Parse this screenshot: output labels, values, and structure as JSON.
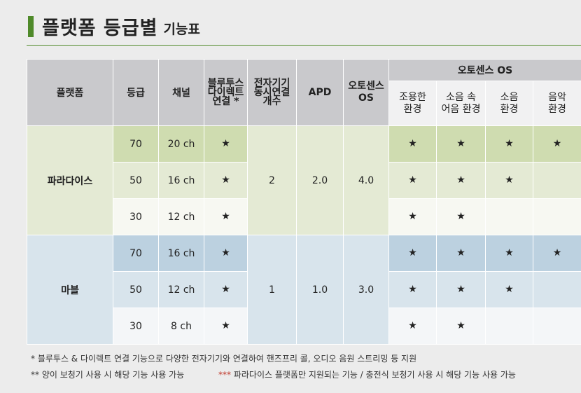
{
  "title": {
    "main": "플랫폼 등급별",
    "sub": "기능표"
  },
  "header": {
    "platform": "플랫폼",
    "grade": "등급",
    "channel": "채널",
    "bluetooth_lines": [
      "블루투스",
      "다이렉트",
      "연결 *"
    ],
    "devices_lines": [
      "전자기기",
      "동시연결",
      "개수"
    ],
    "apd": "APD",
    "autosense_lines": [
      "오토센스",
      "OS"
    ],
    "autosense_group": "오토센스 OS",
    "env": [
      [
        "조용한",
        "환경"
      ],
      [
        "소음 속",
        "어음 환경"
      ],
      [
        "소음",
        "환경"
      ],
      [
        "음악",
        "환경"
      ]
    ]
  },
  "groups": [
    {
      "name": "파라다이스",
      "devices": "2",
      "apd": "2.0",
      "os": "4.0",
      "rows": [
        {
          "grade": "70",
          "channel": "20 ch",
          "bt": "★",
          "env": [
            "★",
            "★",
            "★",
            "★"
          ]
        },
        {
          "grade": "50",
          "channel": "16 ch",
          "bt": "★",
          "env": [
            "★",
            "★",
            "★",
            ""
          ]
        },
        {
          "grade": "30",
          "channel": "12 ch",
          "bt": "★",
          "env": [
            "★",
            "★",
            "",
            ""
          ]
        }
      ]
    },
    {
      "name": "마블",
      "devices": "1",
      "apd": "1.0",
      "os": "3.0",
      "rows": [
        {
          "grade": "70",
          "channel": "16 ch",
          "bt": "★",
          "env": [
            "★",
            "★",
            "★",
            "★"
          ]
        },
        {
          "grade": "50",
          "channel": "12 ch",
          "bt": "★",
          "env": [
            "★",
            "★",
            "★",
            ""
          ]
        },
        {
          "grade": "30",
          "channel": "8 ch",
          "bt": "★",
          "env": [
            "★",
            "★",
            "",
            ""
          ]
        }
      ]
    }
  ],
  "footnotes": {
    "note1_mark": "*",
    "note1": "블루투스 & 다이렉트 연결 기능으로 다양한 전자기기와 연결하여 핸즈프리 콜, 오디오 음원 스트리밍 등 지원",
    "note2_mark": "**",
    "note2": "양이 보청기 사용 시 해당 기능 사용 가능",
    "note3_mark": "***",
    "note3": "파라다이스 플랫폼만 지원되는 기능 / 충전식 보청기 사용 시 해당 기능 사용 가능"
  }
}
